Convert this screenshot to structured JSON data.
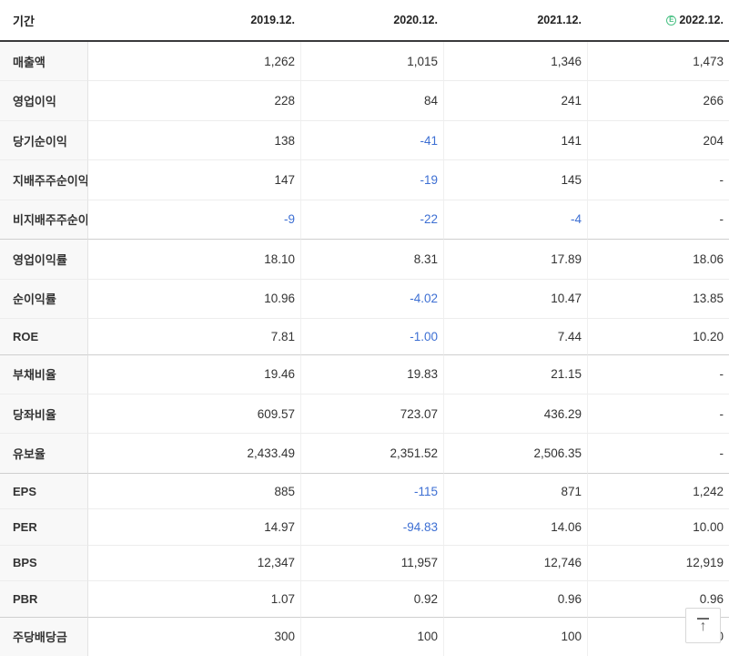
{
  "table": {
    "header": {
      "period_label": "기간",
      "columns": [
        "2019.12.",
        "2020.12.",
        "2021.12.",
        "2022.12."
      ],
      "estimate_badge": "E"
    },
    "rows": [
      {
        "label": "매출액",
        "values": [
          "1,262",
          "1,015",
          "1,346",
          "1,473"
        ]
      },
      {
        "label": "영업이익",
        "values": [
          "228",
          "84",
          "241",
          "266"
        ]
      },
      {
        "label": "당기순이익",
        "values": [
          "138",
          "-41",
          "141",
          "204"
        ]
      },
      {
        "label": "지배주주순이익",
        "values": [
          "147",
          "-19",
          "145",
          "-"
        ]
      },
      {
        "label": "비지배주주순이익",
        "values": [
          "-9",
          "-22",
          "-4",
          "-"
        ]
      },
      {
        "label": "영업이익률",
        "values": [
          "18.10",
          "8.31",
          "17.89",
          "18.06"
        ]
      },
      {
        "label": "순이익률",
        "values": [
          "10.96",
          "-4.02",
          "10.47",
          "13.85"
        ]
      },
      {
        "label": "ROE",
        "values": [
          "7.81",
          "-1.00",
          "7.44",
          "10.20"
        ]
      },
      {
        "label": "부채비율",
        "values": [
          "19.46",
          "19.83",
          "21.15",
          "-"
        ]
      },
      {
        "label": "당좌비율",
        "values": [
          "609.57",
          "723.07",
          "436.29",
          "-"
        ]
      },
      {
        "label": "유보율",
        "values": [
          "2,433.49",
          "2,351.52",
          "2,506.35",
          "-"
        ]
      },
      {
        "label": "EPS",
        "values": [
          "885",
          "-115",
          "871",
          "1,242"
        ]
      },
      {
        "label": "PER",
        "values": [
          "14.97",
          "-94.83",
          "14.06",
          "10.00"
        ]
      },
      {
        "label": "BPS",
        "values": [
          "12,347",
          "11,957",
          "12,746",
          "12,919"
        ]
      },
      {
        "label": "PBR",
        "values": [
          "1.07",
          "0.92",
          "0.96",
          "0.96"
        ]
      },
      {
        "label": "주당배당금",
        "values": [
          "300",
          "100",
          "100",
          "100"
        ]
      }
    ]
  },
  "colors": {
    "negative_value": "#3d6fd3",
    "estimate_badge": "#4bc185",
    "header_rule": "#3a3a3c",
    "label_column_bg": "#f8f8f8"
  },
  "scroll_top": {
    "icon": "arrow-up-to-top-icon"
  }
}
